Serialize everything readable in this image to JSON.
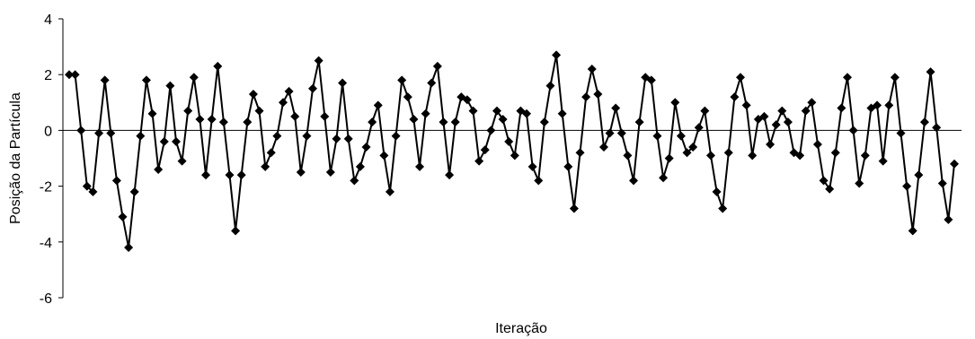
{
  "chart_data": {
    "type": "line",
    "title": "",
    "xlabel": "Iteração",
    "ylabel": "Posição da Partícula",
    "ylim": [
      -6,
      4
    ],
    "yticks": [
      4,
      2,
      0,
      -2,
      -4,
      -6
    ],
    "ytick_labels": [
      "4",
      "2",
      "0",
      "-2",
      "-4",
      "-6"
    ],
    "grid": false,
    "legend": "none",
    "marker": "diamond",
    "line_color": "#000000",
    "series": [
      {
        "values": [
          2.0,
          2.0,
          0.0,
          -2.0,
          -2.2,
          -0.1,
          1.8,
          -0.1,
          -1.8,
          -3.1,
          -4.2,
          -2.2,
          -0.2,
          1.8,
          0.6,
          -1.4,
          -0.4,
          1.6,
          -0.4,
          -1.1,
          0.7,
          1.9,
          0.4,
          -1.6,
          0.4,
          2.3,
          0.3,
          -1.6,
          -3.6,
          -1.6,
          0.3,
          1.3,
          0.7,
          -1.3,
          -0.8,
          -0.2,
          1.0,
          1.4,
          0.5,
          -1.5,
          -0.2,
          1.5,
          2.5,
          0.5,
          -1.5,
          -0.3,
          1.7,
          -0.3,
          -1.8,
          -1.3,
          -0.6,
          0.3,
          0.9,
          -0.9,
          -2.2,
          -0.2,
          1.8,
          1.2,
          0.4,
          -1.3,
          0.6,
          1.7,
          2.3,
          0.3,
          -1.6,
          0.3,
          1.2,
          1.1,
          0.7,
          -1.1,
          -0.7,
          0.0,
          0.7,
          0.4,
          -0.4,
          -0.9,
          0.7,
          0.6,
          -1.3,
          -1.8,
          0.3,
          1.6,
          2.7,
          0.6,
          -1.3,
          -2.8,
          -0.8,
          1.2,
          2.2,
          1.3,
          -0.6,
          -0.1,
          0.8,
          -0.1,
          -0.9,
          -1.8,
          0.3,
          1.9,
          1.8,
          -0.2,
          -1.7,
          -1.0,
          1.0,
          -0.2,
          -0.8,
          -0.6,
          0.1,
          0.7,
          -0.9,
          -2.2,
          -2.8,
          -0.8,
          1.2,
          1.9,
          0.9,
          -0.9,
          0.4,
          0.5,
          -0.5,
          0.2,
          0.7,
          0.3,
          -0.8,
          -0.9,
          0.7,
          1.0,
          -0.5,
          -1.8,
          -2.1,
          -0.8,
          0.8,
          1.9,
          0.0,
          -1.9,
          -0.9,
          0.8,
          0.9,
          -1.1,
          0.9,
          1.9,
          -0.1,
          -2.0,
          -3.6,
          -1.6,
          0.3,
          2.1,
          0.1,
          -1.9,
          -3.2,
          -1.2
        ]
      }
    ]
  }
}
